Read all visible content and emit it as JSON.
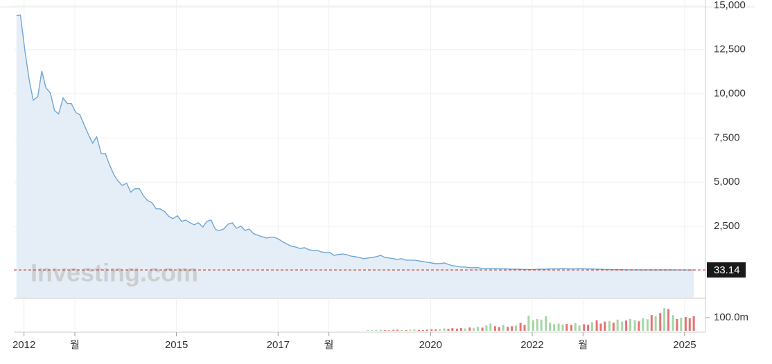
{
  "chart_data": {
    "type": "area",
    "watermark": "Investing.com",
    "x": [
      2011.85,
      2011.93,
      2012.02,
      2012.1,
      2012.18,
      2012.27,
      2012.35,
      2012.43,
      2012.52,
      2012.6,
      2012.68,
      2012.77,
      2012.85,
      2012.93,
      2013.02,
      2013.1,
      2013.18,
      2013.27,
      2013.35,
      2013.43,
      2013.52,
      2013.6,
      2013.68,
      2013.77,
      2013.85,
      2013.93,
      2014.02,
      2014.1,
      2014.18,
      2014.27,
      2014.35,
      2014.43,
      2014.52,
      2014.6,
      2014.68,
      2014.77,
      2014.85,
      2014.93,
      2015.02,
      2015.1,
      2015.18,
      2015.27,
      2015.35,
      2015.43,
      2015.52,
      2015.6,
      2015.68,
      2015.77,
      2015.85,
      2015.93,
      2016.02,
      2016.1,
      2016.18,
      2016.27,
      2016.35,
      2016.43,
      2016.52,
      2016.6,
      2016.68,
      2016.77,
      2016.85,
      2016.93,
      2017.02,
      2017.1,
      2017.18,
      2017.27,
      2017.35,
      2017.43,
      2017.52,
      2017.6,
      2017.68,
      2017.77,
      2017.85,
      2017.93,
      2018.02,
      2018.1,
      2018.18,
      2018.27,
      2018.35,
      2018.43,
      2018.52,
      2018.6,
      2018.68,
      2018.77,
      2018.85,
      2018.93,
      2019.02,
      2019.1,
      2019.18,
      2019.27,
      2019.35,
      2019.43,
      2019.52,
      2019.6,
      2019.68,
      2019.77,
      2019.85,
      2019.93,
      2020.02,
      2020.1,
      2020.18,
      2020.27,
      2020.35,
      2020.43,
      2020.52,
      2020.6,
      2020.68,
      2020.77,
      2020.85,
      2020.93,
      2021.02,
      2021.1,
      2021.18,
      2021.27,
      2021.35,
      2021.43,
      2021.52,
      2021.6,
      2021.68,
      2021.77,
      2021.85,
      2021.93,
      2022.02,
      2022.1,
      2022.18,
      2022.27,
      2022.35,
      2022.43,
      2022.52,
      2022.6,
      2022.68,
      2022.77,
      2022.85,
      2022.93,
      2023.02,
      2023.1,
      2023.18,
      2023.27,
      2023.35,
      2023.43,
      2023.52,
      2023.6,
      2023.68,
      2023.77,
      2023.85,
      2023.93,
      2024.02,
      2024.1,
      2024.18,
      2024.27,
      2024.35,
      2024.43,
      2024.52,
      2024.6,
      2024.68,
      2024.77,
      2024.85,
      2024.93,
      2025.02,
      2025.1,
      2025.18
    ],
    "series": [
      {
        "color": "#6fa6d6",
        "fill": "#e5eef6",
        "values": [
          14420,
          14460,
          12390,
          10820,
          9640,
          9840,
          11290,
          10350,
          10040,
          9050,
          8860,
          9760,
          9450,
          9450,
          8940,
          8820,
          8270,
          7680,
          7210,
          7570,
          6620,
          6620,
          6000,
          5410,
          5060,
          4820,
          4940,
          4430,
          4630,
          4630,
          4230,
          3960,
          3840,
          3490,
          3490,
          3330,
          3060,
          2940,
          3100,
          2780,
          2860,
          2700,
          2590,
          2700,
          2470,
          2780,
          2860,
          2310,
          2270,
          2350,
          2630,
          2700,
          2390,
          2510,
          2270,
          2350,
          2080,
          2000,
          1920,
          1840,
          1880,
          1880,
          1760,
          1610,
          1490,
          1370,
          1330,
          1250,
          1290,
          1180,
          1140,
          1140,
          1060,
          1020,
          1020,
          860,
          900,
          940,
          900,
          820,
          780,
          740,
          670,
          710,
          740,
          780,
          860,
          740,
          710,
          670,
          630,
          670,
          590,
          590,
          590,
          550,
          510,
          470,
          430,
          390,
          390,
          430,
          350,
          270,
          240,
          200,
          200,
          160,
          160,
          160,
          120,
          120,
          120,
          110,
          100,
          100,
          90,
          80,
          80,
          70,
          60,
          60,
          60,
          70,
          80,
          80,
          90,
          100,
          100,
          110,
          100,
          90,
          100,
          110,
          100,
          90,
          90,
          80,
          70,
          60,
          60,
          50,
          50,
          50,
          40,
          40,
          40,
          38,
          38,
          38,
          37,
          37,
          36,
          36,
          35,
          35,
          34,
          34,
          33.5,
          33.3,
          33.14
        ]
      }
    ],
    "volume": {
      "up_color": "#a5d6a7",
      "down_color": "#e57373",
      "values": [
        null,
        null,
        null,
        null,
        null,
        null,
        null,
        null,
        null,
        null,
        null,
        null,
        null,
        null,
        null,
        null,
        null,
        null,
        null,
        null,
        null,
        null,
        null,
        null,
        null,
        null,
        null,
        null,
        null,
        null,
        null,
        null,
        null,
        null,
        null,
        null,
        null,
        null,
        null,
        null,
        null,
        null,
        null,
        null,
        null,
        null,
        null,
        null,
        null,
        null,
        null,
        null,
        null,
        null,
        null,
        null,
        null,
        null,
        null,
        null,
        null,
        null,
        null,
        null,
        null,
        null,
        null,
        null,
        null,
        null,
        null,
        null,
        null,
        null,
        null,
        null,
        null,
        null,
        null,
        null,
        null,
        null,
        null,
        5,
        4,
        6,
        8,
        5,
        4,
        7,
        9,
        6,
        5,
        8,
        10,
        7,
        6,
        9,
        12,
        10,
        14,
        18,
        15,
        20,
        16,
        22,
        18,
        25,
        20,
        30,
        24,
        40,
        55,
        35,
        28,
        45,
        30,
        35,
        40,
        60,
        45,
        115,
        80,
        90,
        85,
        110,
        60,
        50,
        55,
        48,
        52,
        45,
        58,
        40,
        50,
        45,
        65,
        80,
        55,
        70,
        75,
        62,
        85,
        70,
        78,
        90,
        80,
        72,
        95,
        88,
        120,
        110,
        135,
        172,
        165,
        120,
        90,
        100,
        105,
        95,
        110
      ],
      "ylim": [
        0,
        242
      ],
      "yticks": [
        {
          "value": 100,
          "label": "100.0m"
        }
      ]
    },
    "xlim": [
      2011.8,
      2025.41
    ],
    "xticks": [
      {
        "value": 2012,
        "label": "2012"
      },
      {
        "value": 2013,
        "label": "월"
      },
      {
        "value": 2015,
        "label": "2015"
      },
      {
        "value": 2017,
        "label": "2017"
      },
      {
        "value": 2018,
        "label": "월"
      },
      {
        "value": 2020,
        "label": "2020"
      },
      {
        "value": 2022,
        "label": "2022"
      },
      {
        "value": 2023,
        "label": "월"
      },
      {
        "value": 2025,
        "label": "2025"
      }
    ],
    "ylim": [
      -1530,
      15310
    ],
    "yticks": [
      {
        "value": 2500,
        "label": "2,500"
      },
      {
        "value": 5000,
        "label": "5,000"
      },
      {
        "value": 7500,
        "label": "7,500"
      },
      {
        "value": 10000,
        "label": "10,000"
      },
      {
        "value": 12500,
        "label": "12,500"
      },
      {
        "value": 15000,
        "label": "15,000"
      }
    ],
    "grid": true,
    "last_price_color": "#c0392b"
  }
}
